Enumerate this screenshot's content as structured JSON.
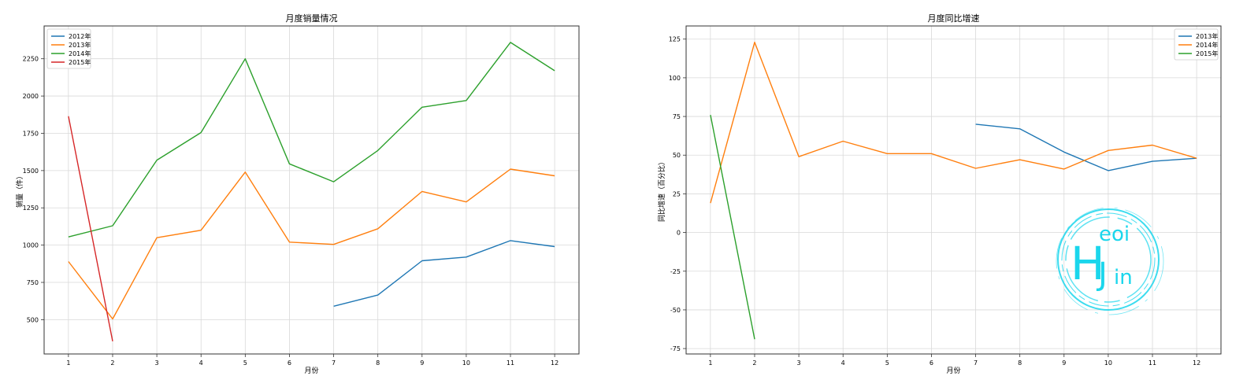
{
  "chart_data": [
    {
      "type": "line",
      "title": "月度销量情况",
      "xlabel": "月份",
      "ylabel": "销量（件）",
      "x": [
        1,
        2,
        3,
        4,
        5,
        6,
        7,
        8,
        9,
        10,
        11,
        12
      ],
      "xlim": [
        0.45,
        12.55
      ],
      "ylim": [
        270,
        2470
      ],
      "yticks": [
        500,
        750,
        1000,
        1250,
        1500,
        1750,
        2000,
        2250
      ],
      "grid": true,
      "legend_position": "top-left",
      "series": [
        {
          "name": "2012年",
          "color": "#1f77b4",
          "values": [
            null,
            null,
            null,
            null,
            null,
            null,
            590,
            665,
            895,
            920,
            1030,
            990
          ]
        },
        {
          "name": "2013年",
          "color": "#ff7f0e",
          "values": [
            890,
            505,
            1050,
            1100,
            1490,
            1020,
            1005,
            1110,
            1360,
            1290,
            1510,
            1465
          ]
        },
        {
          "name": "2014年",
          "color": "#2ca02c",
          "values": [
            1055,
            1130,
            1570,
            1755,
            2250,
            1545,
            1425,
            1635,
            1925,
            1970,
            2360,
            2170
          ]
        },
        {
          "name": "2015年",
          "color": "#d62728",
          "values": [
            1865,
            355,
            null,
            null,
            null,
            null,
            null,
            null,
            null,
            null,
            null,
            null
          ]
        }
      ]
    },
    {
      "type": "line",
      "title": "月度同比增速",
      "xlabel": "月份",
      "ylabel": "同比增速（百分比）",
      "x": [
        1,
        2,
        3,
        4,
        5,
        6,
        7,
        8,
        9,
        10,
        11,
        12
      ],
      "xlim": [
        0.45,
        12.55
      ],
      "ylim": [
        -78.5,
        133.5
      ],
      "yticks": [
        -75,
        -50,
        -25,
        0,
        25,
        50,
        75,
        100,
        125
      ],
      "grid": true,
      "legend_position": "top-right",
      "series": [
        {
          "name": "2013年",
          "color": "#1f77b4",
          "values": [
            null,
            null,
            null,
            null,
            null,
            null,
            70,
            67,
            52,
            40,
            46,
            48
          ]
        },
        {
          "name": "2014年",
          "color": "#ff7f0e",
          "values": [
            19,
            123,
            49,
            59,
            51,
            51,
            41.5,
            47,
            41,
            53,
            56.5,
            48
          ]
        },
        {
          "name": "2015年",
          "color": "#2ca02c",
          "values": [
            76,
            -69,
            null,
            null,
            null,
            null,
            null,
            null,
            null,
            null,
            null,
            null
          ]
        }
      ]
    }
  ],
  "watermark": {
    "letters": [
      "H",
      "eoi",
      "J",
      "in"
    ],
    "color": "#1ad6ec"
  }
}
